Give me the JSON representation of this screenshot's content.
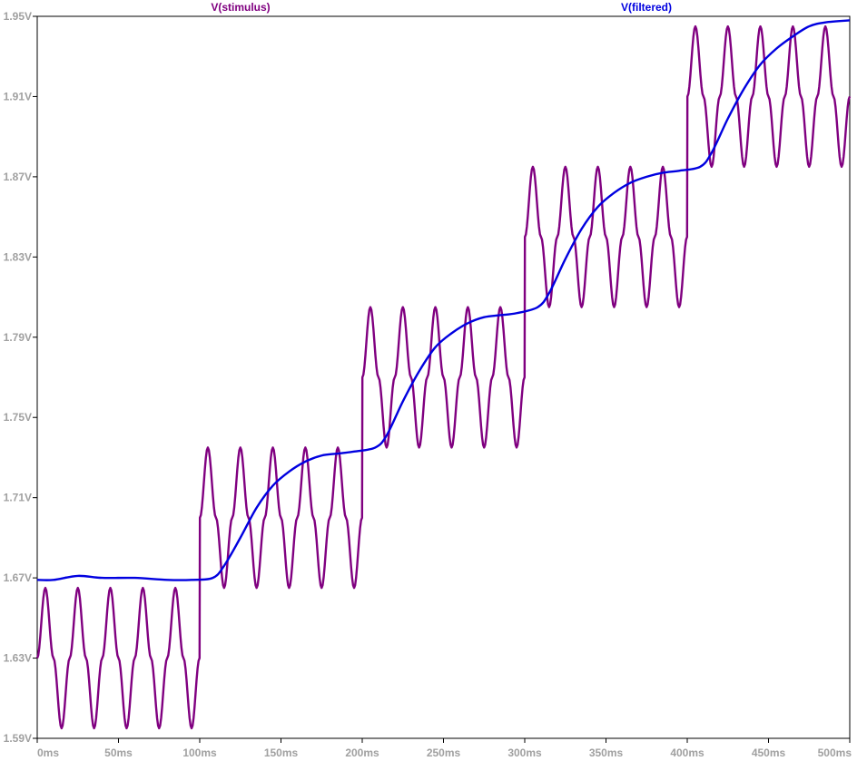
{
  "chart_data": {
    "type": "line",
    "title": "",
    "xlabel": "",
    "ylabel": "",
    "xlim": [
      0,
      500
    ],
    "ylim": [
      1.59,
      1.95
    ],
    "x_unit": "ms",
    "y_unit": "V",
    "x_ticks": [
      0,
      50,
      100,
      150,
      200,
      250,
      300,
      350,
      400,
      450,
      500
    ],
    "x_tick_labels": [
      "0ms",
      "50ms",
      "100ms",
      "150ms",
      "200ms",
      "250ms",
      "300ms",
      "350ms",
      "400ms",
      "450ms",
      "500ms"
    ],
    "y_ticks": [
      1.59,
      1.63,
      1.67,
      1.71,
      1.75,
      1.79,
      1.83,
      1.87,
      1.91,
      1.95
    ],
    "y_tick_labels": [
      "1.59V",
      "1.63V",
      "1.67V",
      "1.71V",
      "1.75V",
      "1.79V",
      "1.83V",
      "1.87V",
      "1.91V",
      "1.95V"
    ],
    "grid": false,
    "legend": "top-center",
    "series": [
      {
        "name": "V(stimulus)",
        "color": "#800080",
        "x": [
          0,
          5,
          10,
          15,
          20,
          25,
          30,
          35,
          40,
          45,
          50,
          55,
          60,
          65,
          70,
          75,
          80,
          85,
          90,
          95,
          99.9,
          100.1,
          105,
          110,
          115,
          120,
          125,
          130,
          135,
          140,
          145,
          150,
          155,
          160,
          165,
          170,
          175,
          180,
          185,
          190,
          195,
          199.9,
          200.1,
          205,
          210,
          215,
          220,
          225,
          230,
          235,
          240,
          245,
          250,
          255,
          260,
          265,
          270,
          275,
          280,
          285,
          290,
          295,
          299.9,
          300.1,
          305,
          310,
          315,
          320,
          325,
          330,
          335,
          340,
          345,
          350,
          355,
          360,
          365,
          370,
          375,
          380,
          385,
          390,
          395,
          399.9,
          400.1,
          405,
          410,
          415,
          420,
          425,
          430,
          435,
          440,
          445,
          450,
          455,
          460,
          465,
          470,
          475,
          480,
          485,
          490,
          495,
          500
        ],
        "y": [
          1.63,
          1.665,
          1.63,
          1.595,
          1.63,
          1.665,
          1.63,
          1.595,
          1.63,
          1.665,
          1.63,
          1.595,
          1.63,
          1.665,
          1.63,
          1.595,
          1.63,
          1.665,
          1.63,
          1.595,
          1.63,
          1.7,
          1.735,
          1.7,
          1.665,
          1.7,
          1.735,
          1.7,
          1.665,
          1.7,
          1.735,
          1.7,
          1.665,
          1.7,
          1.735,
          1.7,
          1.665,
          1.7,
          1.735,
          1.7,
          1.665,
          1.7,
          1.77,
          1.805,
          1.77,
          1.735,
          1.77,
          1.805,
          1.77,
          1.735,
          1.77,
          1.805,
          1.77,
          1.735,
          1.77,
          1.805,
          1.77,
          1.735,
          1.77,
          1.805,
          1.77,
          1.735,
          1.77,
          1.84,
          1.875,
          1.84,
          1.805,
          1.84,
          1.875,
          1.84,
          1.805,
          1.84,
          1.875,
          1.84,
          1.805,
          1.84,
          1.875,
          1.84,
          1.805,
          1.84,
          1.875,
          1.84,
          1.805,
          1.84,
          1.91,
          1.945,
          1.91,
          1.875,
          1.91,
          1.945,
          1.91,
          1.875,
          1.91,
          1.945,
          1.91,
          1.875,
          1.91,
          1.945,
          1.91,
          1.875,
          1.91,
          1.945,
          1.91,
          1.875,
          1.91
        ]
      },
      {
        "name": "V(filtered)",
        "color": "#0000e0",
        "x": [
          0,
          10,
          25,
          40,
          60,
          80,
          95,
          108,
          115,
          125,
          135,
          145,
          155,
          165,
          175,
          185,
          195,
          208,
          215,
          225,
          235,
          245,
          255,
          265,
          275,
          285,
          295,
          308,
          315,
          325,
          335,
          345,
          355,
          365,
          375,
          385,
          395,
          408,
          415,
          425,
          435,
          445,
          455,
          465,
          475,
          485,
          500
        ],
        "y": [
          1.669,
          1.669,
          1.671,
          1.67,
          1.67,
          1.669,
          1.669,
          1.67,
          1.676,
          1.69,
          1.705,
          1.716,
          1.723,
          1.728,
          1.731,
          1.732,
          1.733,
          1.735,
          1.741,
          1.758,
          1.773,
          1.785,
          1.792,
          1.797,
          1.8,
          1.801,
          1.802,
          1.805,
          1.812,
          1.829,
          1.844,
          1.855,
          1.862,
          1.867,
          1.87,
          1.872,
          1.873,
          1.875,
          1.882,
          1.899,
          1.914,
          1.926,
          1.934,
          1.94,
          1.945,
          1.947,
          1.948
        ]
      }
    ]
  }
}
